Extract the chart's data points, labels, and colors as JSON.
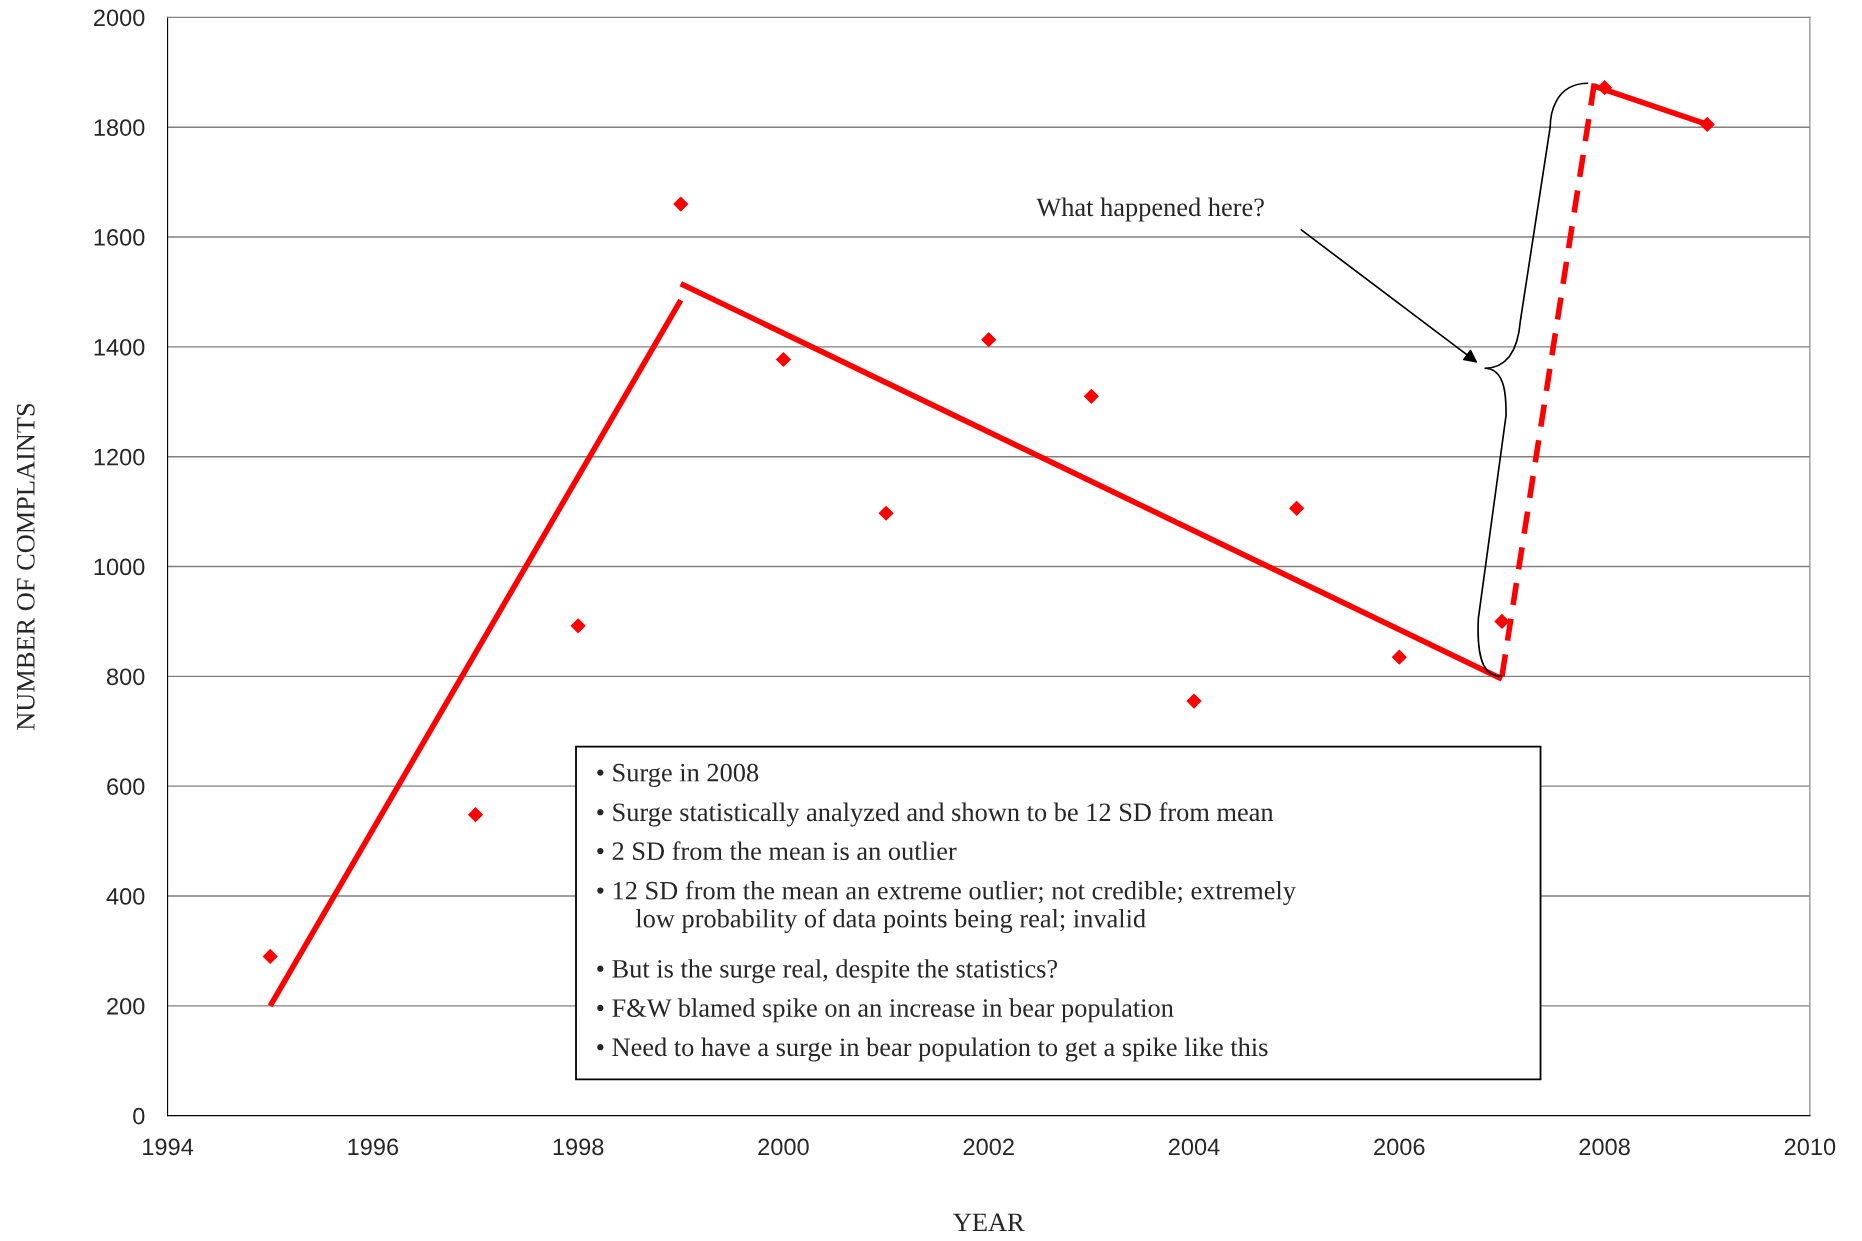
{
  "chart_data": {
    "type": "scatter",
    "xlabel": "YEAR",
    "ylabel": "NUMBER OF COMPLAINTS",
    "xlim": [
      1994,
      2010
    ],
    "xticks": [
      1994,
      1996,
      1998,
      2000,
      2002,
      2004,
      2006,
      2008,
      2010
    ],
    "ylim": [
      0,
      2000
    ],
    "yticks": [
      0,
      200,
      400,
      600,
      800,
      1000,
      1200,
      1400,
      1600,
      1800,
      2000
    ],
    "grid": "y",
    "legend": false,
    "series": [
      {
        "marker": "diamond",
        "color": "#ff0000",
        "x": [
          1995,
          1997,
          1998,
          1999,
          2000,
          2001,
          2002,
          2003,
          2004,
          2005,
          2006,
          2007,
          2008,
          2009
        ],
        "values": [
          290,
          548,
          892,
          1660,
          1377,
          1097,
          1413,
          1310,
          755,
          1106,
          835,
          900,
          1872,
          1805
        ]
      },
      {
        "type": "line",
        "marker": "none",
        "line_style": "solid",
        "color": "#ff0000",
        "x": [
          1995,
          1999
        ],
        "values": [
          200,
          1485
        ]
      },
      {
        "type": "line",
        "marker": "none",
        "line_style": "solid",
        "color": "#ff0000",
        "x": [
          1999,
          2007
        ],
        "values": [
          1515,
          795
        ]
      },
      {
        "type": "line",
        "marker": "none",
        "line_style": "dashed",
        "color": "#ff0000",
        "x": [
          2007,
          2007.9
        ],
        "values": [
          800,
          1880
        ]
      },
      {
        "type": "line",
        "marker": "none",
        "line_style": "solid",
        "color": "#ff0000",
        "x": [
          2007.9,
          2009
        ],
        "values": [
          1875,
          1805
        ]
      }
    ],
    "annotations": [
      "What happened here?",
      "• Surge in 2008",
      "• Surge statistically analyzed and shown to be 12 SD from mean",
      "• 2 SD from the mean is an outlier",
      "• 12 SD from the mean an extreme outlier; not credible; extremely\n      low probability of data points being real; invalid",
      "• But is the surge real, despite the statistics?",
      "• F&W blamed spike on an increase in bear population",
      "• Need to have a surge in bear population to get a spike like this"
    ]
  }
}
